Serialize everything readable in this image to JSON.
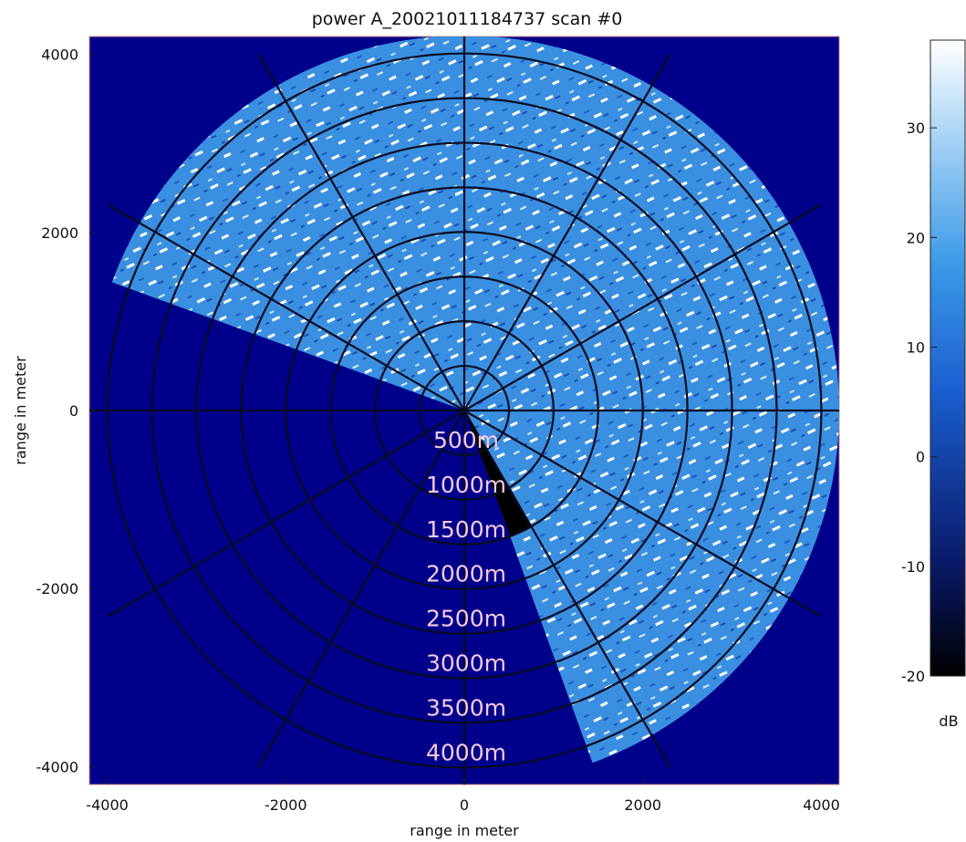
{
  "chart_data": {
    "type": "heatmap",
    "title": "power A_20021011184737 scan #0",
    "xlabel": "range in meter",
    "ylabel": "range in meter",
    "xlim": [
      -4200,
      4200
    ],
    "ylim": [
      -4200,
      4200
    ],
    "x_ticks": [
      -4000,
      -2000,
      0,
      2000,
      4000
    ],
    "y_ticks": [
      -4000,
      -2000,
      0,
      2000,
      4000
    ],
    "x_tick_labels": [
      "-4000",
      "-2000",
      "0",
      "2000",
      "4000"
    ],
    "y_tick_labels": [
      "-4000",
      "-2000",
      "0",
      "2000",
      "4000"
    ],
    "background_color": "#00008a",
    "scan_sector": {
      "center": [
        0,
        0
      ],
      "max_range_m": 4200,
      "bearing_start_deg": -70,
      "bearing_end_deg": 160,
      "bearing_unit": "degrees clockwise from north"
    },
    "shadow_sector": {
      "bearing_start_deg": 150,
      "bearing_end_deg": 160,
      "color": "#000000"
    },
    "range_rings_m": [
      500,
      1000,
      1500,
      2000,
      2500,
      3000,
      3500,
      4000
    ],
    "range_ring_labels": [
      "500m",
      "1000m",
      "1500m",
      "2000m",
      "2500m",
      "3000m",
      "3500m",
      "4000m"
    ],
    "radial_bearings_deg": [
      0,
      30,
      60,
      90,
      120,
      150,
      180,
      210,
      240,
      270,
      300,
      330
    ],
    "colorbar": {
      "range": [
        -20,
        38
      ],
      "ticks": [
        -20,
        -10,
        0,
        10,
        20,
        30
      ],
      "tick_labels": [
        "-20",
        "-10",
        "0",
        "10",
        "20",
        "30"
      ],
      "unit_label": "dB",
      "colors": [
        "#000000",
        "#0a1a6a",
        "#1a5fd0",
        "#3d9ae8",
        "#a8d4f5",
        "#ffffff"
      ]
    }
  }
}
